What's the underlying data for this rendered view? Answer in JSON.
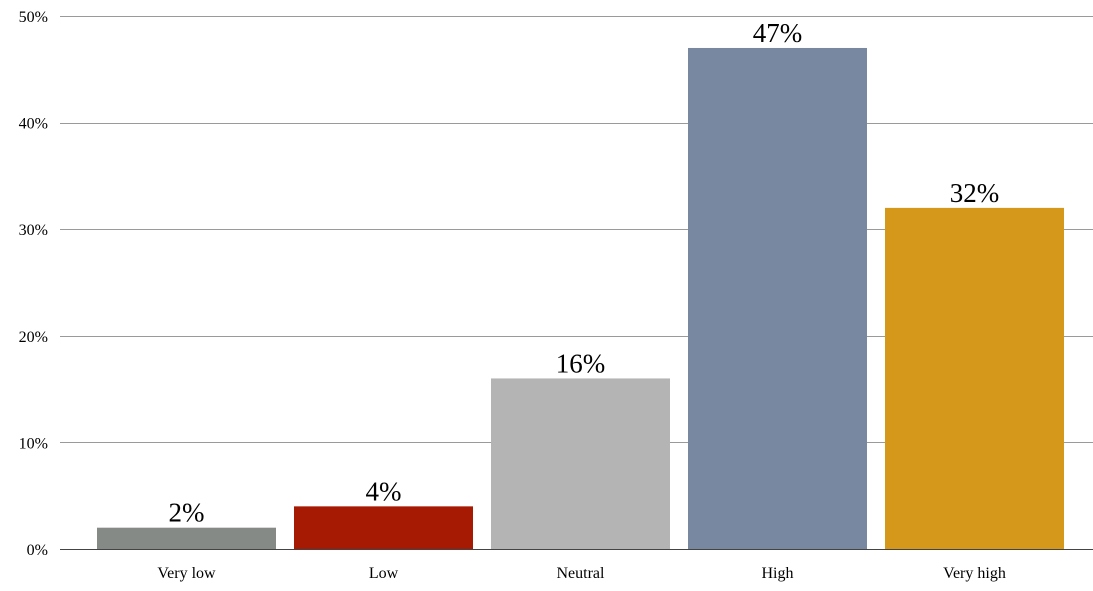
{
  "chart_data": {
    "type": "bar",
    "categories": [
      "Very low",
      "Low",
      "Neutral",
      "High",
      "Very high"
    ],
    "values": [
      2,
      4,
      16,
      47,
      32
    ],
    "data_labels": [
      "2%",
      "4%",
      "16%",
      "47%",
      "32%"
    ],
    "colors": [
      "#858a86",
      "#a61a03",
      "#b4b4b4",
      "#7788a0",
      "#d6981a"
    ],
    "ylim": [
      0,
      50
    ],
    "yticks": [
      0,
      10,
      20,
      30,
      40,
      50
    ],
    "ytick_labels": [
      "0%",
      "10%",
      "20%",
      "30%",
      "40%",
      "50%"
    ],
    "grid": true,
    "gridline_color": "#9a9a9a",
    "axis_line_color": "#444444",
    "title": "",
    "xlabel": "",
    "ylabel": "",
    "legend": "none"
  }
}
